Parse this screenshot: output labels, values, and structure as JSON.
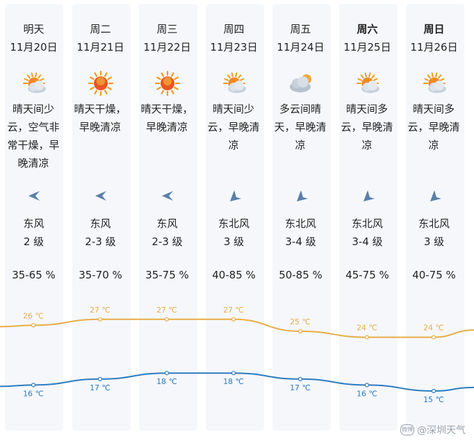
{
  "days": [
    {
      "day": "明天",
      "bold": false,
      "date": "11月20日",
      "icon": "sun-cloud-icon",
      "desc": "晴天间少云，空气非常干燥，早晚清凉",
      "wind_dir_icon": "wind-arrow-east-icon",
      "wind": "东风",
      "level": "2 级",
      "humidity": "35-65 %",
      "high": "26 ℃",
      "low": "16 ℃"
    },
    {
      "day": "周二",
      "bold": false,
      "date": "11月21日",
      "icon": "sun-icon",
      "desc": "晴天干燥，早晚清凉",
      "wind_dir_icon": "wind-arrow-east-icon",
      "wind": "东风",
      "level": "2-3 级",
      "humidity": "35-70 %",
      "high": "27 ℃",
      "low": "17 ℃"
    },
    {
      "day": "周三",
      "bold": false,
      "date": "11月22日",
      "icon": "sun-icon",
      "desc": "晴天干燥，早晚清凉",
      "wind_dir_icon": "wind-arrow-east-icon",
      "wind": "东风",
      "level": "2-3 级",
      "humidity": "35-75 %",
      "high": "27 ℃",
      "low": "18 ℃"
    },
    {
      "day": "周四",
      "bold": false,
      "date": "11月23日",
      "icon": "sun-cloud-icon",
      "desc": "晴天间少云，早晚清凉",
      "wind_dir_icon": "wind-arrow-northeast-icon",
      "wind": "东北风",
      "level": "3 级",
      "humidity": "40-85 %",
      "high": "27 ℃",
      "low": "18 ℃"
    },
    {
      "day": "周五",
      "bold": false,
      "date": "11月24日",
      "icon": "cloud-sun-icon",
      "desc": "多云间晴天，早晚清凉",
      "wind_dir_icon": "wind-arrow-northeast-icon",
      "wind": "东北风",
      "level": "3-4 级",
      "humidity": "50-85 %",
      "high": "25 ℃",
      "low": "17 ℃"
    },
    {
      "day": "周六",
      "bold": true,
      "date": "11月25日",
      "icon": "sun-cloud-icon",
      "desc": "晴天间多云，早晚清凉",
      "wind_dir_icon": "wind-arrow-northeast-icon",
      "wind": "东北风",
      "level": "3-4 级",
      "humidity": "45-75 %",
      "high": "24 ℃",
      "low": "16 ℃"
    },
    {
      "day": "周日",
      "bold": true,
      "date": "11月26日",
      "icon": "sun-cloud-icon",
      "desc": "晴天间多云，早晚清凉",
      "wind_dir_icon": "wind-arrow-northeast-icon",
      "wind": "东北风",
      "level": "3 级",
      "humidity": "40-75 %",
      "high": "24 ℃",
      "low": "15 ℃"
    }
  ],
  "high_temps": [
    26,
    27,
    27,
    27,
    25,
    24,
    24
  ],
  "low_temps": [
    16,
    17,
    18,
    18,
    17,
    16,
    15
  ],
  "colors": {
    "high": "#e8ad45",
    "low": "#2b7bbf",
    "column_bg": "#f5f7fb",
    "sun": "#f39a1c",
    "cloud": "#c9d2dc",
    "arrow": "#5a7fa8"
  },
  "watermark": {
    "badge": "微博",
    "text": "@深圳天气"
  }
}
